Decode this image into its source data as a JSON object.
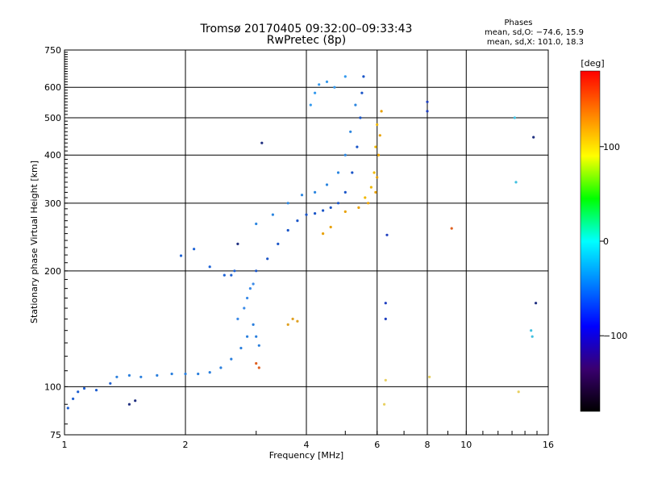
{
  "chart_data": {
    "type": "scatter",
    "title": "Tromsø 20170405 09:32:00–09:33:43",
    "subtitle": "RwPretec (8p)",
    "stats": {
      "heading": "Phases",
      "line1": "mean, sd,O: −74.6, 15.9",
      "line2": "mean, sd,X: 101.0, 18.3"
    },
    "xlabel": "Frequency [MHz]",
    "ylabel": "Stationary phase Virtual Height [km]",
    "x_scale": "log",
    "y_scale": "log",
    "xlim": [
      1,
      16
    ],
    "ylim": [
      75,
      750
    ],
    "grid": true,
    "x_ticks": [
      1,
      2,
      4,
      6,
      8,
      10,
      16
    ],
    "x_tick_labels": [
      "1",
      "2",
      "4",
      "6",
      "8",
      "10",
      "16"
    ],
    "y_ticks": [
      75,
      100,
      200,
      300,
      400,
      500,
      600,
      750
    ],
    "y_tick_labels": [
      "75",
      "100",
      "200",
      "300",
      "400",
      "500",
      "600",
      "750"
    ],
    "colorbar": {
      "label": "[deg]",
      "range": [
        -180,
        180
      ],
      "ticks": [
        100,
        0,
        -100
      ],
      "tick_labels": [
        "100",
        "0",
        "−100"
      ],
      "colors": [
        "#000000",
        "#3a0070",
        "#0000ff",
        "#0080ff",
        "#00ffff",
        "#00ff00",
        "#ffff00",
        "#ff8000",
        "#ff0000"
      ]
    },
    "series": [
      {
        "color": "#1f5fd0",
        "points": [
          [
            1.02,
            88
          ],
          [
            1.05,
            93
          ],
          [
            1.08,
            97
          ],
          [
            1.12,
            99
          ],
          [
            1.2,
            98
          ],
          [
            1.3,
            102
          ]
        ]
      },
      {
        "color": "#2a7fdd",
        "points": [
          [
            1.35,
            106
          ],
          [
            1.45,
            107
          ],
          [
            1.55,
            106
          ],
          [
            1.7,
            107
          ],
          [
            1.85,
            108
          ],
          [
            2.0,
            108
          ],
          [
            2.15,
            108
          ],
          [
            2.3,
            109
          ],
          [
            2.45,
            112
          ],
          [
            2.6,
            118
          ],
          [
            2.75,
            126
          ],
          [
            2.85,
            135
          ],
          [
            2.95,
            145
          ],
          [
            3.0,
            135
          ],
          [
            3.05,
            128
          ]
        ]
      },
      {
        "color": "#3a8ae8",
        "points": [
          [
            2.7,
            150
          ],
          [
            2.8,
            160
          ],
          [
            2.85,
            170
          ],
          [
            2.9,
            180
          ],
          [
            2.95,
            185
          ]
        ]
      },
      {
        "color": "#1e63d6",
        "points": [
          [
            2.5,
            195
          ],
          [
            2.6,
            195
          ],
          [
            2.65,
            200
          ],
          [
            2.3,
            205
          ],
          [
            2.1,
            228
          ],
          [
            1.95,
            219
          ]
        ]
      },
      {
        "color": "#1a55c8",
        "points": [
          [
            3.0,
            200
          ],
          [
            3.2,
            215
          ],
          [
            3.4,
            235
          ],
          [
            3.6,
            255
          ],
          [
            3.8,
            270
          ],
          [
            4.0,
            280
          ],
          [
            4.2,
            282
          ],
          [
            4.4,
            287
          ],
          [
            4.6,
            292
          ],
          [
            4.8,
            300
          ],
          [
            5.0,
            320
          ],
          [
            5.2,
            360
          ],
          [
            5.35,
            420
          ],
          [
            5.45,
            500
          ],
          [
            5.5,
            580
          ],
          [
            5.55,
            640
          ]
        ]
      },
      {
        "color": "#2c86e0",
        "points": [
          [
            3.0,
            265
          ],
          [
            3.3,
            280
          ],
          [
            3.6,
            300
          ],
          [
            3.9,
            315
          ],
          [
            4.2,
            320
          ],
          [
            4.5,
            335
          ],
          [
            4.8,
            360
          ],
          [
            5.0,
            400
          ],
          [
            5.15,
            460
          ],
          [
            5.3,
            540
          ]
        ]
      },
      {
        "color": "#3399ee",
        "points": [
          [
            4.1,
            540
          ],
          [
            4.2,
            580
          ],
          [
            4.3,
            610
          ],
          [
            4.5,
            620
          ],
          [
            4.7,
            600
          ],
          [
            5.0,
            640
          ]
        ]
      },
      {
        "color": "#e8a000",
        "points": [
          [
            4.4,
            250
          ],
          [
            4.6,
            260
          ],
          [
            5.0,
            285
          ],
          [
            5.4,
            292
          ],
          [
            5.7,
            300
          ],
          [
            5.95,
            320
          ],
          [
            6.0,
            350
          ],
          [
            6.05,
            400
          ],
          [
            6.1,
            450
          ],
          [
            6.15,
            520
          ]
        ]
      },
      {
        "color": "#f0b800",
        "points": [
          [
            5.6,
            310
          ],
          [
            5.8,
            330
          ],
          [
            5.9,
            360
          ],
          [
            5.95,
            420
          ],
          [
            6.0,
            480
          ]
        ]
      },
      {
        "color": "#e0a020",
        "points": [
          [
            3.6,
            145
          ],
          [
            3.7,
            150
          ],
          [
            3.8,
            148
          ]
        ]
      },
      {
        "color": "#2040c0",
        "points": [
          [
            6.3,
            165
          ],
          [
            6.3,
            150
          ],
          [
            6.35,
            248
          ],
          [
            8.0,
            520
          ],
          [
            8.0,
            550
          ]
        ]
      },
      {
        "color": "#e8d060",
        "points": [
          [
            6.25,
            90
          ],
          [
            6.3,
            104
          ],
          [
            8.1,
            106
          ],
          [
            13.5,
            97
          ]
        ]
      },
      {
        "color": "#40c0e0",
        "points": [
          [
            13.2,
            500
          ],
          [
            13.3,
            340
          ],
          [
            14.5,
            140
          ],
          [
            14.6,
            135
          ]
        ]
      },
      {
        "color": "#e06020",
        "points": [
          [
            9.2,
            258
          ],
          [
            3.0,
            115
          ],
          [
            3.05,
            112
          ]
        ]
      },
      {
        "color": "#203080",
        "points": [
          [
            14.7,
            445
          ],
          [
            14.9,
            165
          ],
          [
            1.45,
            90
          ],
          [
            1.5,
            92
          ],
          [
            2.7,
            235
          ],
          [
            3.1,
            430
          ]
        ]
      }
    ]
  }
}
